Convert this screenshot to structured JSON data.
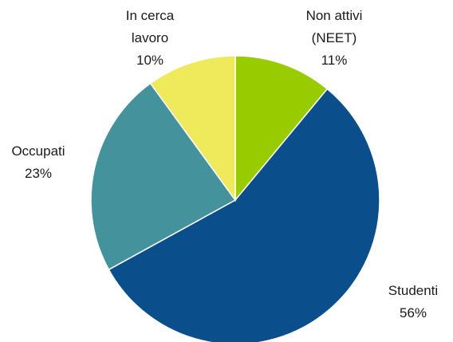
{
  "chart_data": {
    "type": "pie",
    "title": "",
    "start_angle_deg": 0,
    "direction": "clockwise",
    "slices": [
      {
        "label_lines": [
          "Non attivi",
          "(NEET)"
        ],
        "value": 11,
        "value_label": "11%",
        "color": "#99cc00"
      },
      {
        "label_lines": [
          "Studenti"
        ],
        "value": 56,
        "value_label": "56%",
        "color": "#0b4e8c"
      },
      {
        "label_lines": [
          "Occupati"
        ],
        "value": 23,
        "value_label": "23%",
        "color": "#44939c"
      },
      {
        "label_lines": [
          "In cerca",
          "lavoro"
        ],
        "value": 10,
        "value_label": "10%",
        "color": "#eeea5c"
      }
    ],
    "legend": "none"
  }
}
